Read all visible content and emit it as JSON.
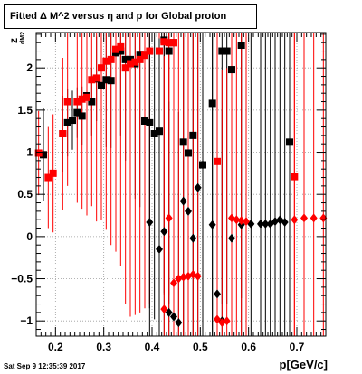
{
  "chart_data": {
    "type": "scatter",
    "title": "Fitted Δ M^2 versus η and p for Global proton",
    "ylabel": "z",
    "ylabel_sub": "dM2",
    "xlabel": "p[GeV/c]",
    "xlim": [
      0.16,
      0.76
    ],
    "ylim": [
      -1.18,
      2.42
    ],
    "x_ticks": [
      0.2,
      0.3,
      0.4,
      0.5,
      0.6,
      0.7
    ],
    "x_tick_labels": [
      "0.2",
      "0.3",
      "0.4",
      "0.5",
      "0.6",
      "0.7"
    ],
    "y_ticks": [
      -1,
      -0.5,
      0,
      0.5,
      1,
      1.5,
      2
    ],
    "y_tick_labels": [
      "−1",
      "−0.5",
      "0",
      "0.5",
      "1",
      "1.5",
      "2"
    ],
    "grid": true,
    "series": [
      {
        "color": "#000000",
        "marker": "square",
        "points": [
          {
            "x": 0.175,
            "y": 0.97,
            "e": 0.55
          },
          {
            "x": 0.215,
            "y": 1.22,
            "e": 0.45
          },
          {
            "x": 0.225,
            "y": 1.35,
            "e": 0.4
          },
          {
            "x": 0.235,
            "y": 1.38,
            "e": 0.35
          },
          {
            "x": 0.245,
            "y": 1.47,
            "e": 0.3
          },
          {
            "x": 0.255,
            "y": 1.43,
            "e": 0.35
          },
          {
            "x": 0.265,
            "y": 1.67,
            "e": 0.3
          },
          {
            "x": 0.275,
            "y": 1.6,
            "e": 0.4
          },
          {
            "x": 0.285,
            "y": 1.87,
            "e": 0.5
          },
          {
            "x": 0.295,
            "y": 1.79,
            "e": 0.6
          },
          {
            "x": 0.305,
            "y": 1.86,
            "e": 0.8
          },
          {
            "x": 0.315,
            "y": 1.85,
            "e": 0.8
          },
          {
            "x": 0.325,
            "y": 2.18,
            "e": 1.0
          },
          {
            "x": 0.335,
            "y": 2.2,
            "e": 1.0
          },
          {
            "x": 0.345,
            "y": 2.1,
            "e": 1.2
          },
          {
            "x": 0.355,
            "y": 2.1,
            "e": 1.4
          },
          {
            "x": 0.365,
            "y": 2.05,
            "e": 1.6
          },
          {
            "x": 0.375,
            "y": 2.15,
            "e": 1.8
          },
          {
            "x": 0.385,
            "y": 1.37,
            "e": 1.9
          },
          {
            "x": 0.395,
            "y": 1.35,
            "e": 2.2
          },
          {
            "x": 0.405,
            "y": 1.22,
            "e": 2.2
          },
          {
            "x": 0.415,
            "y": 1.25,
            "e": 2.5
          },
          {
            "x": 0.425,
            "y": 2.33,
            "e": 3.0
          },
          {
            "x": 0.435,
            "y": 2.2,
            "e": 3.0
          },
          {
            "x": 0.445,
            "y": 2.3,
            "e": 3.0
          },
          {
            "x": 0.465,
            "y": 1.12,
            "e": 3.0
          },
          {
            "x": 0.475,
            "y": 0.99,
            "e": 3.0
          },
          {
            "x": 0.485,
            "y": 1.2,
            "e": 3.0
          },
          {
            "x": 0.505,
            "y": 0.85,
            "e": 3.0
          },
          {
            "x": 0.525,
            "y": 1.58,
            "e": 3.0
          },
          {
            "x": 0.545,
            "y": 2.2,
            "e": 3.0
          },
          {
            "x": 0.555,
            "y": 2.2,
            "e": 3.0
          },
          {
            "x": 0.565,
            "y": 1.98,
            "e": 3.0
          },
          {
            "x": 0.585,
            "y": 2.27,
            "e": 3.0
          },
          {
            "x": 0.685,
            "y": 1.12,
            "e": 3.0
          }
        ]
      },
      {
        "color": "#ff0000",
        "marker": "square",
        "points": [
          {
            "x": 0.165,
            "y": 0.99,
            "e": 0.5
          },
          {
            "x": 0.185,
            "y": 0.7,
            "e": 0.6
          },
          {
            "x": 0.195,
            "y": 0.75,
            "e": 0.7
          },
          {
            "x": 0.215,
            "y": 1.22,
            "e": 0.9
          },
          {
            "x": 0.225,
            "y": 1.6,
            "e": 1.0
          },
          {
            "x": 0.245,
            "y": 1.6,
            "e": 1.2
          },
          {
            "x": 0.255,
            "y": 1.63,
            "e": 1.3
          },
          {
            "x": 0.265,
            "y": 1.65,
            "e": 1.4
          },
          {
            "x": 0.275,
            "y": 1.86,
            "e": 1.5
          },
          {
            "x": 0.285,
            "y": 1.88,
            "e": 1.7
          },
          {
            "x": 0.295,
            "y": 2.0,
            "e": 1.8
          },
          {
            "x": 0.305,
            "y": 2.08,
            "e": 2.0
          },
          {
            "x": 0.315,
            "y": 2.1,
            "e": 2.2
          },
          {
            "x": 0.325,
            "y": 2.22,
            "e": 2.4
          },
          {
            "x": 0.335,
            "y": 2.25,
            "e": 2.6
          },
          {
            "x": 0.345,
            "y": 2.0,
            "e": 2.8
          },
          {
            "x": 0.355,
            "y": 2.05,
            "e": 3.0
          },
          {
            "x": 0.365,
            "y": 2.07,
            "e": 3.0
          },
          {
            "x": 0.375,
            "y": 2.1,
            "e": 3.0
          },
          {
            "x": 0.385,
            "y": 2.15,
            "e": 3.0
          },
          {
            "x": 0.395,
            "y": 2.2,
            "e": 3.0
          },
          {
            "x": 0.415,
            "y": 2.2,
            "e": 3.0
          },
          {
            "x": 0.425,
            "y": 2.31,
            "e": 3.0
          },
          {
            "x": 0.435,
            "y": 2.3,
            "e": 3.0
          },
          {
            "x": 0.445,
            "y": 2.3,
            "e": 3.0
          },
          {
            "x": 0.535,
            "y": 0.89,
            "e": 3.0
          },
          {
            "x": 0.695,
            "y": 0.71,
            "e": 3.0
          }
        ]
      },
      {
        "color": "#000000",
        "marker": "diamond",
        "points": [
          {
            "x": 0.395,
            "y": 0.17,
            "e": 2.5
          },
          {
            "x": 0.415,
            "y": -0.15,
            "e": 2.5
          },
          {
            "x": 0.425,
            "y": 0.06,
            "e": 2.5
          },
          {
            "x": 0.435,
            "y": -0.9,
            "e": 2.5
          },
          {
            "x": 0.445,
            "y": -0.95,
            "e": 2.5
          },
          {
            "x": 0.455,
            "y": -1.02,
            "e": 2.5
          },
          {
            "x": 0.465,
            "y": 0.42,
            "e": 2.5
          },
          {
            "x": 0.475,
            "y": 0.3,
            "e": 2.5
          },
          {
            "x": 0.485,
            "y": -0.02,
            "e": 2.5
          },
          {
            "x": 0.495,
            "y": 0.58,
            "e": 2.5
          },
          {
            "x": 0.505,
            "y": 0.85,
            "e": 2.5
          },
          {
            "x": 0.525,
            "y": 0.14,
            "e": 2.5
          },
          {
            "x": 0.535,
            "y": -0.68,
            "e": 2.5
          },
          {
            "x": 0.545,
            "y": -1.0,
            "e": 2.5
          },
          {
            "x": 0.565,
            "y": -0.02,
            "e": 2.5
          },
          {
            "x": 0.585,
            "y": 0.14,
            "e": 2.5
          },
          {
            "x": 0.605,
            "y": 0.15,
            "e": 2.5
          },
          {
            "x": 0.625,
            "y": 0.15,
            "e": 2.5
          },
          {
            "x": 0.635,
            "y": 0.15,
            "e": 2.5
          },
          {
            "x": 0.645,
            "y": 0.15,
            "e": 2.5
          },
          {
            "x": 0.655,
            "y": 0.18,
            "e": 2.5
          },
          {
            "x": 0.665,
            "y": 0.2,
            "e": 2.5
          },
          {
            "x": 0.675,
            "y": 0.17,
            "e": 2.5
          }
        ]
      },
      {
        "color": "#ff0000",
        "marker": "diamond",
        "points": [
          {
            "x": 0.425,
            "y": -0.86,
            "e": 3.0
          },
          {
            "x": 0.435,
            "y": 0.22,
            "e": 3.0
          },
          {
            "x": 0.445,
            "y": -0.55,
            "e": 3.0
          },
          {
            "x": 0.455,
            "y": -0.5,
            "e": 3.0
          },
          {
            "x": 0.465,
            "y": -0.48,
            "e": 3.0
          },
          {
            "x": 0.475,
            "y": -0.47,
            "e": 3.0
          },
          {
            "x": 0.485,
            "y": -0.45,
            "e": 3.0
          },
          {
            "x": 0.495,
            "y": -0.47,
            "e": 3.0
          },
          {
            "x": 0.535,
            "y": -0.98,
            "e": 3.0
          },
          {
            "x": 0.545,
            "y": -1.02,
            "e": 3.0
          },
          {
            "x": 0.555,
            "y": -1.0,
            "e": 3.0
          },
          {
            "x": 0.565,
            "y": 0.22,
            "e": 3.0
          },
          {
            "x": 0.575,
            "y": 0.2,
            "e": 3.0
          },
          {
            "x": 0.585,
            "y": 0.19,
            "e": 3.0
          },
          {
            "x": 0.595,
            "y": 0.18,
            "e": 3.0
          },
          {
            "x": 0.695,
            "y": 0.2,
            "e": 3.0
          },
          {
            "x": 0.715,
            "y": 0.22,
            "e": 3.0
          },
          {
            "x": 0.735,
            "y": 0.22,
            "e": 3.0
          },
          {
            "x": 0.755,
            "y": 0.22,
            "e": 3.0
          }
        ]
      }
    ]
  },
  "footer": {
    "timestamp": "Sat Sep  9 12:35:39 2017"
  }
}
